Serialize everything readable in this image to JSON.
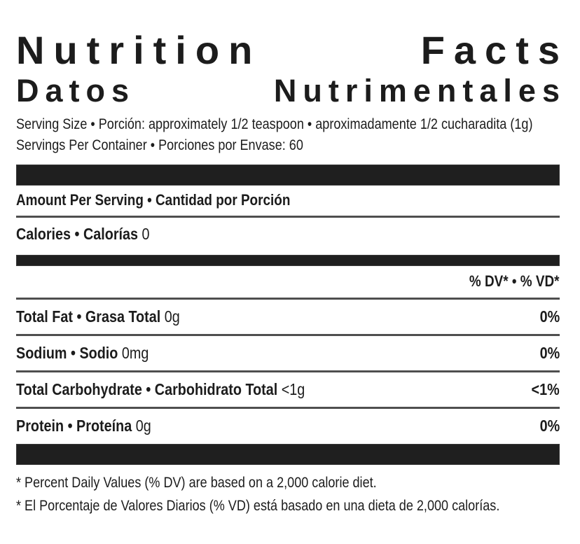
{
  "title": {
    "en_words": [
      "Nutrition",
      "Facts"
    ],
    "es_words": [
      "Datos",
      "Nutrimentales"
    ]
  },
  "serving": {
    "size_line": "Serving Size • Porción: approximately 1/2 teaspoon • aproximadamente 1/2 cucharadita (1g)",
    "per_container_line": "Servings Per Container • Porciones por Envase: 60"
  },
  "amount_per_serving": {
    "label": "Amount Per Serving • Cantidad por Porción"
  },
  "calories": {
    "label": "Calories • Calorías",
    "value": "0"
  },
  "dv_header": "% DV* • % VD*",
  "nutrients": [
    {
      "name": "Total Fat • Grasa Total",
      "amount": "0g",
      "dv": "0%"
    },
    {
      "name": "Sodium • Sodio",
      "amount": "0mg",
      "dv": "0%"
    },
    {
      "name": "Total Carbohydrate • Carbohidrato Total",
      "amount": "<1g",
      "dv": "<1%"
    },
    {
      "name": "Protein • Proteína",
      "amount": "0g",
      "dv": "0%"
    }
  ],
  "footnotes": [
    "* Percent Daily Values (% DV) are based on a 2,000 calorie diet.",
    "* El Porcentaje de Valores Diarios (% VD) está basado en una dieta de 2,000 calorías."
  ],
  "colors": {
    "text": "#1c1c1c",
    "bar": "#1f1f1f",
    "rule": "#4f4f4f",
    "background": "#ffffff"
  }
}
